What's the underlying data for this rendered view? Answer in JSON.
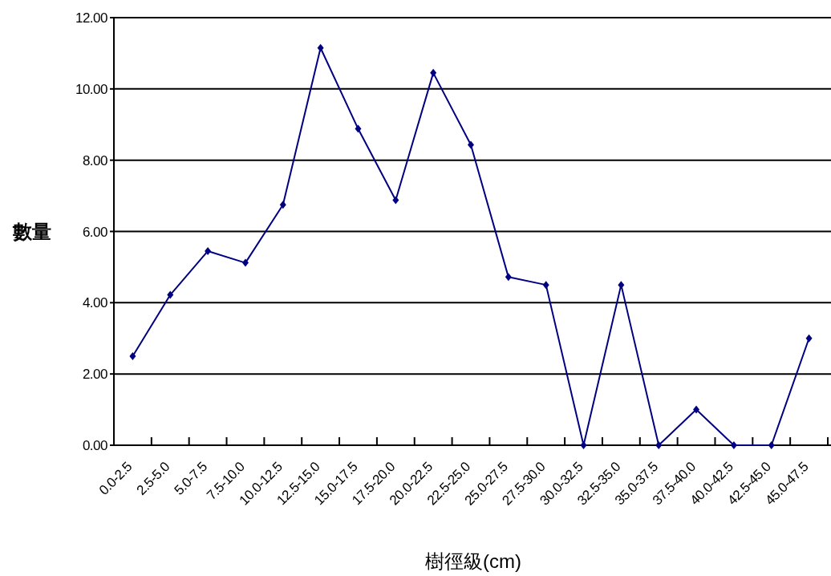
{
  "chart_data": {
    "type": "line",
    "xlabel": "樹徑級(cm)",
    "ylabel": "數量",
    "categories": [
      "0.0-2.5",
      "2.5-5.0",
      "5.0-7.5",
      "7.5-10.0",
      "10.0-12.5",
      "12.5-15.0",
      "15.0-17.5",
      "17.5-20.0",
      "20.0-22.5",
      "22.5-25.0",
      "25.0-27.5",
      "27.5-30.0",
      "30.0-32.5",
      "32.5-35.0",
      "35.0-37.5",
      "37.5-40.0",
      "40.0-42.5",
      "42.5-45.0",
      "45.0-47.5"
    ],
    "series": [
      {
        "color": "#000080",
        "values": [
          2.5,
          4.22,
          5.45,
          5.12,
          6.75,
          11.15,
          8.88,
          6.88,
          10.45,
          8.43,
          4.72,
          4.5,
          0,
          4.5,
          0,
          1.0,
          0,
          0,
          3.0
        ]
      }
    ],
    "ylim": [
      0,
      12
    ],
    "yticks": [
      {
        "value": 0,
        "label": "0.00"
      },
      {
        "value": 2,
        "label": "2.00"
      },
      {
        "value": 4,
        "label": "4.00"
      },
      {
        "value": 6,
        "label": "6.00"
      },
      {
        "value": 8,
        "label": "8.00"
      },
      {
        "value": 10,
        "label": "10.00"
      },
      {
        "value": 12,
        "label": "12.00"
      }
    ],
    "grid": "y",
    "marker": "diamond",
    "line_style": "solid"
  }
}
